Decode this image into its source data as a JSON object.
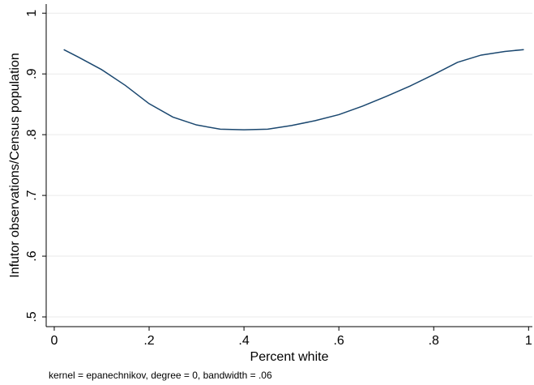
{
  "chart_data": {
    "type": "line",
    "x_label": "Percent white",
    "y_label": "Infutor observations/Census population",
    "note": "kernel = epanechnikov, degree = 0, bandwidth = .06",
    "x": [
      0.02,
      0.05,
      0.1,
      0.15,
      0.2,
      0.25,
      0.3,
      0.35,
      0.4,
      0.45,
      0.5,
      0.55,
      0.6,
      0.65,
      0.7,
      0.75,
      0.8,
      0.85,
      0.9,
      0.95,
      0.99
    ],
    "series": [
      {
        "color": "#1a476f",
        "values": [
          0.94,
          0.928,
          0.907,
          0.881,
          0.851,
          0.829,
          0.816,
          0.809,
          0.808,
          0.809,
          0.815,
          0.823,
          0.833,
          0.847,
          0.863,
          0.88,
          0.899,
          0.919,
          0.931,
          0.937,
          0.94
        ]
      }
    ],
    "xlim": [
      -0.017,
      1.008
    ],
    "ylim": [
      0.484,
      1.015
    ],
    "xticks": [
      0,
      {
        "value": 0.2,
        "label": ".2"
      },
      {
        "value": 0.4,
        "label": ".4"
      },
      {
        "value": 0.6,
        "label": ".6"
      },
      {
        "value": 0.8,
        "label": ".8"
      },
      1
    ],
    "yticks": [
      {
        "value": 0.5,
        "label": ".5"
      },
      {
        "value": 0.6,
        "label": ".6"
      },
      {
        "value": 0.7,
        "label": ".7"
      },
      {
        "value": 0.8,
        "label": ".8"
      },
      {
        "value": 0.9,
        "label": ".9"
      },
      1
    ],
    "grid": true
  }
}
